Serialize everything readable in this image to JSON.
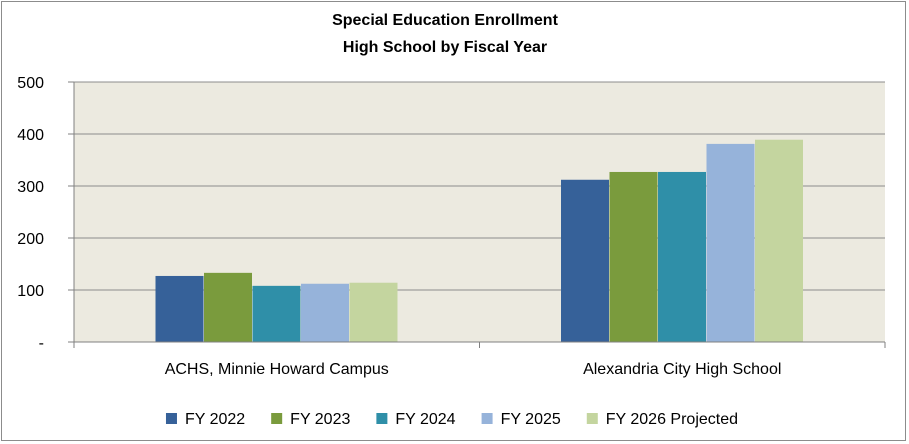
{
  "chart_data": {
    "type": "bar",
    "title_line1": "Special Education Enrollment",
    "title_line2": "High School by Fiscal Year",
    "categories": [
      "ACHS, Minnie Howard Campus",
      "Alexandria City High School"
    ],
    "series": [
      {
        "name": "FY 2022",
        "color": "#366199",
        "values": [
          127,
          312
        ]
      },
      {
        "name": "FY 2023",
        "color": "#7a9b3d",
        "values": [
          133,
          327
        ]
      },
      {
        "name": "FY 2024",
        "color": "#2f8fa8",
        "values": [
          108,
          327
        ]
      },
      {
        "name": "FY 2025",
        "color": "#96b3da",
        "values": [
          112,
          381
        ]
      },
      {
        "name": "FY 2026 Projected",
        "color": "#c4d59f",
        "values": [
          114,
          389
        ]
      }
    ],
    "ylim": [
      0,
      500
    ],
    "y_ticks": [
      0,
      100,
      200,
      300,
      400,
      500
    ],
    "y_tick_labels": [
      "-",
      "100",
      "200",
      "300",
      "400",
      "500"
    ],
    "grid": true,
    "plot_background": "#eceae0",
    "legend_position": "bottom"
  }
}
